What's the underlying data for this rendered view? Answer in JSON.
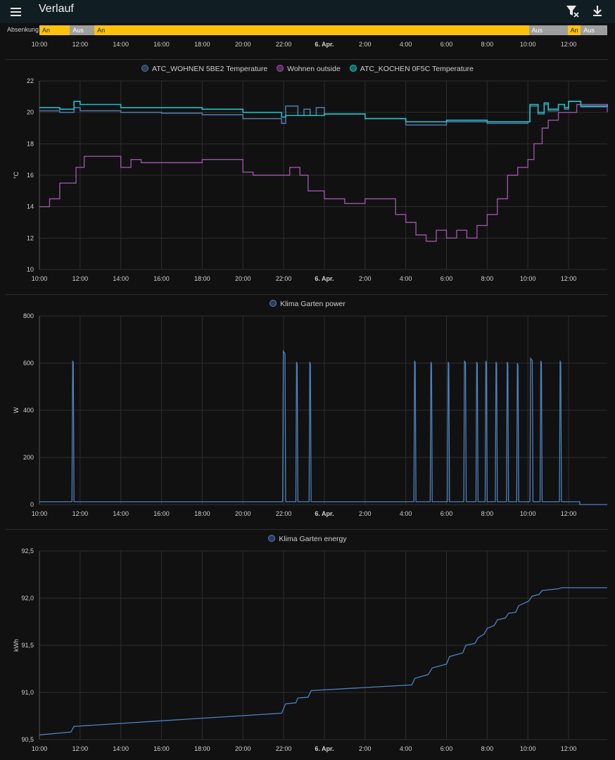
{
  "app": {
    "title": "Verlauf"
  },
  "icons": {
    "menu": "menu-icon",
    "filter_clear": "filter-remove-icon",
    "download": "download-icon"
  },
  "timeline": {
    "label": "Absenkung",
    "segments": [
      {
        "state": "An",
        "start": 10.0,
        "end": 11.5
      },
      {
        "state": "Aus",
        "start": 11.5,
        "end": 12.7
      },
      {
        "state": "An",
        "start": 12.7,
        "end": 34.05
      },
      {
        "state": "Aus",
        "start": 34.05,
        "end": 35.95
      },
      {
        "state": "An",
        "start": 35.95,
        "end": 36.6
      },
      {
        "state": "Aus",
        "start": 36.6,
        "end": 38.0
      }
    ]
  },
  "time_axis": {
    "start": 10,
    "end": 37.9,
    "ticks": [
      {
        "t": 10,
        "label": "10:00"
      },
      {
        "t": 12,
        "label": "12:00"
      },
      {
        "t": 14,
        "label": "14:00"
      },
      {
        "t": 16,
        "label": "16:00"
      },
      {
        "t": 18,
        "label": "18:00"
      },
      {
        "t": 20,
        "label": "20:00"
      },
      {
        "t": 22,
        "label": "22:00"
      },
      {
        "t": 24,
        "label": "6. Apr.",
        "bold": true
      },
      {
        "t": 26,
        "label": "2:00"
      },
      {
        "t": 28,
        "label": "4:00"
      },
      {
        "t": 30,
        "label": "6:00"
      },
      {
        "t": 32,
        "label": "8:00"
      },
      {
        "t": 34,
        "label": "10:00"
      },
      {
        "t": 36,
        "label": "12:00"
      }
    ]
  },
  "colors": {
    "on": "#fdc30a",
    "off": "#9e9e9e",
    "wohnen": "#4f76a6",
    "outside": "#9b52a8",
    "kochen": "#1fbfc3",
    "power": "#4a83c1",
    "grid": "#2e2e2e"
  },
  "chart_data": [
    {
      "type": "line",
      "ylabel": "°C",
      "ylim": [
        10,
        22
      ],
      "yticks": [
        10,
        12,
        14,
        16,
        18,
        20,
        22
      ],
      "series": [
        {
          "name": "ATC_WOHNEN 5BE2 Temperature",
          "color": "#4f76a6",
          "x": [
            10,
            11,
            11.7,
            12,
            14,
            16,
            18,
            20,
            21.9,
            22.1,
            22.7,
            23,
            23.3,
            23.6,
            24,
            26,
            28,
            30,
            32,
            34,
            34.1,
            34.5,
            34.8,
            35,
            35.5,
            35.8,
            36,
            36.6,
            37.9
          ],
          "y": [
            20.1,
            20.0,
            20.3,
            20.1,
            20.0,
            19.95,
            19.85,
            19.6,
            19.3,
            20.4,
            19.8,
            20.2,
            19.8,
            20.3,
            19.9,
            19.6,
            19.2,
            19.4,
            19.3,
            19.4,
            20.4,
            19.9,
            20.5,
            20.1,
            20.5,
            20.2,
            20.7,
            20.35,
            20.5
          ]
        },
        {
          "name": "Wohnen outside",
          "color": "#9b52a8",
          "x": [
            10,
            10.5,
            11,
            11.8,
            12.2,
            14,
            14.5,
            15,
            16.5,
            18,
            20,
            20.5,
            22,
            22.3,
            22.8,
            23.2,
            24,
            25,
            26,
            27,
            27.5,
            28,
            28.5,
            29,
            29.5,
            30,
            30.5,
            31,
            31.5,
            32,
            32.5,
            33,
            33.5,
            34,
            34.3,
            34.7,
            35,
            35.5,
            36,
            36.4,
            37.9
          ],
          "y": [
            14,
            14.5,
            15.5,
            16.5,
            17.2,
            16.5,
            17,
            16.8,
            16.8,
            17,
            16.2,
            16,
            16,
            16.5,
            16,
            15,
            14.5,
            14.2,
            14.5,
            14.5,
            13.5,
            13,
            12.2,
            11.8,
            12.5,
            12,
            12.5,
            12,
            12.8,
            13.5,
            14.5,
            16,
            16.5,
            17,
            18,
            19,
            19.5,
            20,
            20,
            20.5,
            20
          ]
        },
        {
          "name": "ATC_KOCHEN 0F5C Temperature",
          "color": "#1fbfc3",
          "x": [
            10,
            11,
            11.7,
            12,
            14,
            16,
            18,
            20,
            21.9,
            22.1,
            24,
            26,
            28,
            30,
            32,
            34,
            34.1,
            34.5,
            34.8,
            35,
            35.5,
            35.8,
            36,
            36.6,
            37.9
          ],
          "y": [
            20.3,
            20.2,
            20.7,
            20.5,
            20.3,
            20.3,
            20.2,
            20.0,
            19.7,
            19.8,
            19.9,
            19.6,
            19.4,
            19.5,
            19.4,
            19.4,
            20.5,
            20.0,
            20.6,
            20.2,
            20.5,
            20.3,
            20.7,
            20.4,
            20.5
          ]
        }
      ]
    },
    {
      "type": "line",
      "ylabel": "W",
      "ylim": [
        0,
        800
      ],
      "yticks": [
        0,
        200,
        400,
        600,
        800
      ],
      "series": [
        {
          "name": "Klima Garten power",
          "color": "#4a83c1",
          "spikes": [
            11.6,
            21.95,
            22.6,
            23.25,
            28.4,
            29.2,
            30.05,
            30.85,
            31.45,
            31.9,
            32.4,
            32.95,
            33.45,
            34.1,
            34.6,
            35.55
          ],
          "widths": [
            0.1,
            0.15,
            0.1,
            0.1,
            0.1,
            0.1,
            0.1,
            0.12,
            0.1,
            0.1,
            0.1,
            0.1,
            0.1,
            0.15,
            0.1,
            0.1
          ],
          "peak": [
            610,
            650,
            605,
            605,
            610,
            605,
            605,
            610,
            605,
            610,
            605,
            605,
            600,
            620,
            610,
            610
          ],
          "base": 12,
          "end_time": 36.55
        }
      ]
    },
    {
      "type": "line",
      "ylabel": "kWh",
      "ylim": [
        90.5,
        92.5
      ],
      "yticks": [
        90.5,
        91.0,
        91.5,
        92.0,
        92.5
      ],
      "ytick_labels": [
        "90,5",
        "91,0",
        "91,5",
        "92,0",
        "92,5"
      ],
      "series": [
        {
          "name": "Klima Garten energy",
          "color": "#4a83c1",
          "x": [
            10,
            11.55,
            11.7,
            21.9,
            22.1,
            22.6,
            22.7,
            23.2,
            23.35,
            28.3,
            28.45,
            29.1,
            29.3,
            30.0,
            30.15,
            30.8,
            30.95,
            31.4,
            31.55,
            31.85,
            32.0,
            32.35,
            32.5,
            32.9,
            33.05,
            33.4,
            33.55,
            34.05,
            34.2,
            34.55,
            34.7,
            35.5,
            35.65,
            36.6,
            37.9
          ],
          "y": [
            90.55,
            90.58,
            90.64,
            90.78,
            90.88,
            90.89,
            90.94,
            90.95,
            91.02,
            91.08,
            91.15,
            91.19,
            91.26,
            91.3,
            91.38,
            91.42,
            91.5,
            91.52,
            91.58,
            91.62,
            91.68,
            91.71,
            91.77,
            91.79,
            91.84,
            91.85,
            91.92,
            91.97,
            92.02,
            92.04,
            92.08,
            92.1,
            92.11,
            92.11,
            92.11
          ]
        }
      ]
    }
  ]
}
